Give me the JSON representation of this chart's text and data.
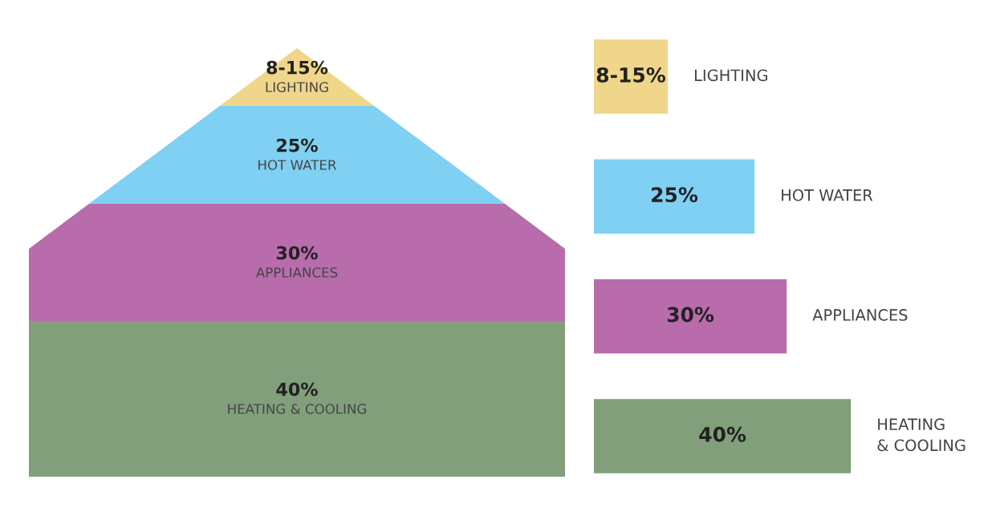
{
  "chart_data": [
    {
      "type": "other",
      "categories": [
        "LIGHTING",
        "HOT WATER",
        "APPLIANCES",
        "HEATING & COOLING"
      ],
      "value_labels": [
        "8-15%",
        "25%",
        "30%",
        "40%"
      ],
      "colors": [
        "#f0d68a",
        "#7fd0f3",
        "#b86cac",
        "#819f7b"
      ]
    },
    {
      "type": "bar",
      "orientation": "horizontal",
      "categories": [
        "LIGHTING",
        "HOT WATER",
        "APPLIANCES",
        "HEATING\n& COOLING"
      ],
      "values": [
        11.5,
        25,
        30,
        40
      ],
      "value_labels": [
        null,
        "25%",
        "30%",
        "40%"
      ],
      "annotations": [
        "8-15%"
      ],
      "colors": [
        "#f0d68a",
        "#7fd0f3",
        "#b86cac",
        "#819f7b"
      ]
    }
  ]
}
